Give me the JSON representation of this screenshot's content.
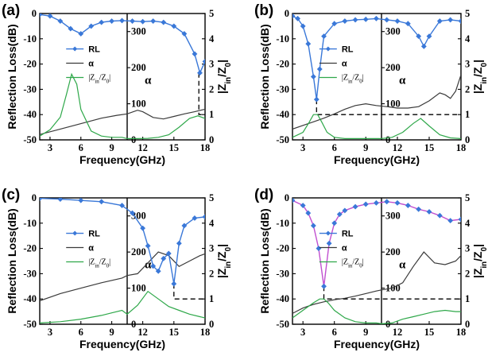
{
  "colors": {
    "rl": "#3a78d8",
    "rl_pink": "#c04fd0",
    "alpha": "#3a3a3a",
    "zz": "#2fa84a",
    "ref": "#000000"
  },
  "chart_data": [
    {
      "panel": "(a)",
      "type": "line",
      "xlabel": "Frequency(GHz)",
      "ylabel_left": "Reflection Loss(dB)",
      "ylabel_mid": "α",
      "ylabel_right": "|Zin/Z0|",
      "xticks_left": [
        3,
        6,
        9
      ],
      "xticks_right": [
        12,
        15,
        18
      ],
      "yticks_left": [
        0,
        -10,
        -20,
        -30,
        -40,
        -50
      ],
      "yticks_mid": [
        0,
        100,
        200,
        300
      ],
      "yticks_right": [
        0,
        1,
        2,
        3,
        4,
        5
      ],
      "legend": [
        "RL",
        "α",
        "|Zin/Z0|"
      ],
      "series": [
        {
          "name": "RL",
          "x": [
            2,
            3,
            4,
            5,
            6,
            7,
            8,
            9,
            10,
            11,
            12,
            13,
            14,
            15,
            16,
            17,
            17.5,
            18
          ],
          "values": [
            -0.4,
            -1,
            -3,
            -6,
            -8,
            -5,
            -3.5,
            -3,
            -2.8,
            -3,
            -3.2,
            -3,
            -3.5,
            -5,
            -8,
            -16,
            -23.5,
            -19
          ]
        },
        {
          "name": "α",
          "x": [
            2,
            4,
            6,
            8,
            9.5,
            10.5,
            11.5,
            12,
            13,
            14,
            15,
            16,
            17,
            18
          ],
          "values": [
            15,
            30,
            45,
            60,
            68,
            72,
            82,
            78,
            62,
            58,
            65,
            72,
            78,
            85
          ]
        },
        {
          "name": "|Zin/Z0|",
          "x": [
            2,
            3,
            4,
            4.6,
            5.1,
            5.6,
            6,
            7,
            8,
            9,
            10,
            10.5,
            11.5,
            12.5,
            13.5,
            14.5,
            15.5,
            16.5,
            17.3,
            18
          ],
          "values": [
            0.15,
            0.4,
            0.9,
            1.8,
            2.6,
            2.2,
            1.2,
            0.35,
            0.15,
            0.1,
            0.1,
            0.05,
            0.05,
            0.06,
            0.1,
            0.2,
            0.5,
            0.85,
            0.95,
            0.85
          ]
        },
        {
          "name": "reference",
          "x": [
            17.4,
            17.4,
            18
          ],
          "values": [
            -23.5,
            -40,
            -40
          ]
        }
      ]
    },
    {
      "panel": "(b)",
      "type": "line",
      "xlabel": "Frequency(GHz)",
      "ylabel_left": "Reflection Loss(dB)",
      "ylabel_mid": "α",
      "ylabel_right": "|Zin/Z0|",
      "xticks_left": [
        3,
        6,
        9
      ],
      "xticks_right": [
        12,
        15,
        18
      ],
      "yticks_left": [
        0,
        -10,
        -20,
        -30,
        -40,
        -50
      ],
      "yticks_mid": [
        0,
        100,
        200,
        300
      ],
      "yticks_right": [
        0,
        1,
        2,
        3,
        4,
        5
      ],
      "legend": [
        "RL",
        "α",
        "|Zin/Z0|"
      ],
      "series": [
        {
          "name": "RL",
          "x": [
            2,
            2.5,
            3,
            3.5,
            4,
            4.3,
            4.6,
            5,
            6,
            7,
            8,
            9,
            10,
            11,
            12,
            13,
            14,
            14.5,
            15,
            16,
            17,
            18
          ],
          "values": [
            -1,
            -2,
            -5,
            -12,
            -25,
            -34,
            -22,
            -9,
            -4,
            -3,
            -2.5,
            -2.3,
            -2,
            -2.5,
            -3,
            -4,
            -9,
            -13,
            -9,
            -3,
            -2.5,
            -3
          ]
        },
        {
          "name": "α",
          "x": [
            2,
            3,
            4,
            5,
            6,
            7,
            8,
            9,
            10,
            11,
            12,
            13,
            14,
            15,
            16,
            16.5,
            17,
            17.5,
            18
          ],
          "values": [
            30,
            40,
            50,
            60,
            72,
            85,
            95,
            100,
            95,
            92,
            88,
            88,
            92,
            108,
            130,
            125,
            115,
            135,
            180
          ]
        },
        {
          "name": "|Zin/Z0|",
          "x": [
            2,
            3,
            3.6,
            4,
            4.4,
            4.8,
            5.3,
            6,
            7,
            8,
            9,
            10,
            10.5,
            11.5,
            12.5,
            13.5,
            14.2,
            15,
            16,
            17,
            18
          ],
          "values": [
            0.1,
            0.3,
            0.7,
            1.0,
            1.0,
            0.7,
            0.3,
            0.1,
            0.05,
            0.05,
            0.05,
            0.05,
            0.05,
            0.1,
            0.3,
            0.65,
            0.85,
            0.55,
            0.2,
            0.08,
            0.05
          ]
        },
        {
          "name": "reference",
          "x": [
            4.3,
            4.3,
            18
          ],
          "values": [
            -34,
            -40,
            -40
          ]
        }
      ]
    },
    {
      "panel": "(c)",
      "type": "line",
      "xlabel": "Frequency(GHz)",
      "ylabel_left": "Reflection Loss(dB)",
      "ylabel_mid": "α",
      "ylabel_right": "|Zin/Z0|",
      "xticks_left": [
        3,
        6,
        9
      ],
      "xticks_right": [
        12,
        15,
        18
      ],
      "yticks_left": [
        0,
        -10,
        -20,
        -30,
        -40,
        -50
      ],
      "yticks_mid": [
        0,
        100,
        200,
        300
      ],
      "yticks_right": [
        0,
        1,
        2,
        3,
        4,
        5
      ],
      "legend": [
        "RL",
        "α",
        "|Zin/Z0|"
      ],
      "series": [
        {
          "name": "RL",
          "x": [
            2,
            4,
            6,
            8,
            10,
            11,
            12,
            12.5,
            13,
            13.5,
            14,
            14.5,
            15,
            15.5,
            16,
            17,
            18
          ],
          "values": [
            -0.2,
            -0.5,
            -1,
            -1.5,
            -3,
            -6,
            -12,
            -19,
            -27,
            -29,
            -24,
            -22,
            -34,
            -18,
            -11,
            -8,
            -7.5
          ]
        },
        {
          "name": "α",
          "x": [
            2,
            4,
            6,
            8,
            10,
            10.5,
            11.5,
            12.5,
            13.5,
            14.5,
            15.5,
            16.5,
            17.5,
            18
          ],
          "values": [
            65,
            85,
            100,
            115,
            128,
            135,
            140,
            170,
            200,
            190,
            160,
            175,
            190,
            195
          ]
        },
        {
          "name": "|Zin/Z0|",
          "x": [
            2,
            4,
            6,
            8,
            9,
            10,
            10.5,
            11.5,
            12.5,
            13.5,
            14.5,
            15.5,
            16.5,
            17.5,
            18
          ],
          "values": [
            0.05,
            0.1,
            0.2,
            0.35,
            0.45,
            0.55,
            0.4,
            0.75,
            1.3,
            1.0,
            0.7,
            0.55,
            0.4,
            0.3,
            0.25
          ]
        },
        {
          "name": "reference",
          "x": [
            15,
            15,
            18
          ],
          "values": [
            -34,
            -40,
            -40
          ]
        }
      ]
    },
    {
      "panel": "(d)",
      "type": "line",
      "xlabel": "Frequency(GHz)",
      "ylabel_left": "Reflection Loss(dB)",
      "ylabel_mid": "α",
      "ylabel_right": "|Zin/Z0|",
      "xticks_left": [
        3,
        6,
        9
      ],
      "xticks_right": [
        12,
        15,
        18
      ],
      "yticks_left": [
        0,
        -10,
        -20,
        -30,
        -40,
        -50
      ],
      "yticks_mid": [
        0,
        100,
        200,
        300
      ],
      "yticks_right": [
        0,
        1,
        2,
        3,
        4,
        5
      ],
      "legend": [
        "RL",
        "α",
        "|Zin/Z0|"
      ],
      "series": [
        {
          "name": "RL",
          "x": [
            2,
            3,
            3.5,
            4,
            4.5,
            5,
            5.5,
            6,
            6.5,
            7,
            8,
            9,
            10,
            11,
            12,
            13,
            14,
            15,
            16,
            17,
            18
          ],
          "values": [
            -1,
            -3,
            -6,
            -11,
            -20,
            -35,
            -18,
            -10,
            -6.5,
            -5,
            -3.5,
            -2.5,
            -2,
            -1.5,
            -2,
            -3,
            -4.5,
            -5.5,
            -7,
            -9,
            -8.5
          ]
        },
        {
          "name": "α",
          "x": [
            2,
            3,
            4,
            5,
            6,
            7,
            8,
            9,
            10,
            10.5,
            11.5,
            12.5,
            13.5,
            14.5,
            15.5,
            16.5,
            17.5,
            18
          ],
          "values": [
            30,
            45,
            55,
            62,
            68,
            72,
            78,
            85,
            92,
            95,
            100,
            115,
            160,
            200,
            170,
            165,
            175,
            190
          ]
        },
        {
          "name": "|Zin/Z0|",
          "x": [
            2,
            3,
            4,
            4.6,
            5,
            5.4,
            6,
            7,
            8,
            9,
            10,
            10.5,
            11.5,
            12.5,
            13.5,
            14.5,
            15.5,
            16.5,
            17.5,
            18
          ],
          "values": [
            0.25,
            0.55,
            0.85,
            1.0,
            1.0,
            0.85,
            0.55,
            0.25,
            0.1,
            0.05,
            0.05,
            0.02,
            0.05,
            0.2,
            0.3,
            0.4,
            0.5,
            0.55,
            0.5,
            0.5
          ]
        },
        {
          "name": "reference",
          "x": [
            5,
            5,
            18
          ],
          "values": [
            -35,
            -40,
            -40
          ]
        }
      ]
    }
  ]
}
